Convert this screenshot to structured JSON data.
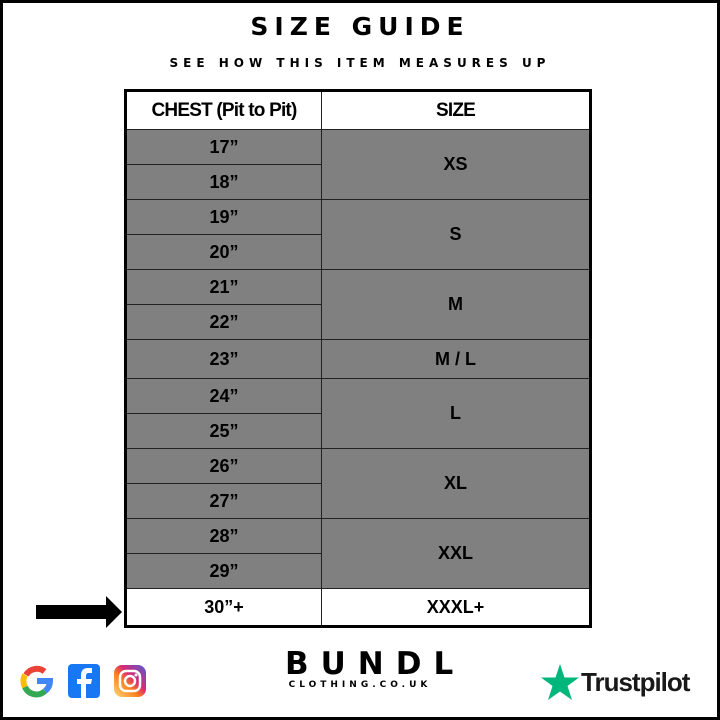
{
  "header": {
    "title": "SIZE GUIDE",
    "subtitle": "SEE HOW THIS ITEM MEASURES UP"
  },
  "table": {
    "columns": [
      "CHEST (Pit to Pit)",
      "SIZE"
    ],
    "groups": [
      {
        "size": "XS",
        "chest": [
          "17”",
          "18”"
        ]
      },
      {
        "size": "S",
        "chest": [
          "19”",
          "20”"
        ]
      },
      {
        "size": "M",
        "chest": [
          "21”",
          "22”"
        ]
      },
      {
        "size": "M / L",
        "chest": [
          "23”"
        ]
      },
      {
        "size": "L",
        "chest": [
          "24”",
          "25”"
        ]
      },
      {
        "size": "XL",
        "chest": [
          "26”",
          "27”"
        ]
      },
      {
        "size": "XXL",
        "chest": [
          "28”",
          "29”"
        ]
      }
    ],
    "highlight": {
      "chest": "30”+",
      "size": "XXXL+"
    }
  },
  "colors": {
    "cell_fill": "#808080",
    "trustpilot_green": "#00b67a"
  },
  "footer": {
    "social_icons": [
      "google-icon",
      "facebook-icon",
      "instagram-icon"
    ],
    "brand": "BUNDL",
    "brand_sub": "CLOTHING.CO.UK",
    "review": "Trustpilot"
  }
}
